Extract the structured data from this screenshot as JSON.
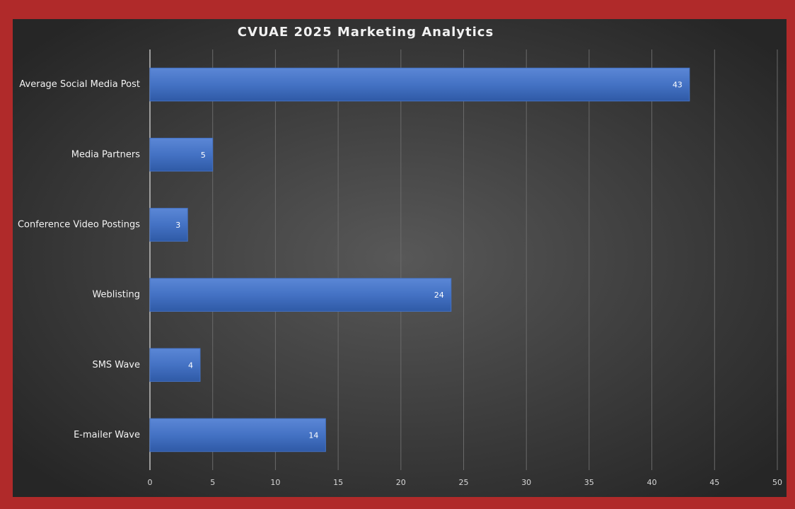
{
  "chart_data": {
    "type": "bar",
    "orientation": "horizontal",
    "title": "CVUAE 2025 Marketing Analytics",
    "categories": [
      "Average Social Media Post",
      "Media Partners",
      "Conference Video Postings",
      "Weblisting",
      "SMS Wave",
      "E-mailer Wave"
    ],
    "values": [
      43,
      5,
      3,
      24,
      4,
      14
    ],
    "color": "#4472c4",
    "xlim": [
      0,
      50
    ],
    "xticks": [
      0,
      5,
      10,
      15,
      20,
      25,
      30,
      35,
      40,
      45,
      50
    ],
    "grid": true
  }
}
